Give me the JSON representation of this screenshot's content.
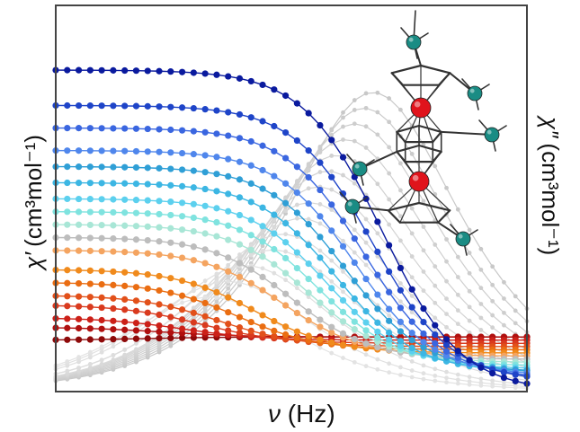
{
  "chart_data": {
    "type": "line",
    "title": "",
    "xlabel_symbol": "ν",
    "xlabel_unit": " (Hz)",
    "ylabel_left_symbol": "χ′",
    "ylabel_left_unit": "(cm³mol⁻¹)",
    "ylabel_right_symbol": "χ″",
    "ylabel_right_unit": "(cm³mol⁻¹)",
    "x_scale": "log",
    "ticks_shown": false,
    "grid": false,
    "legend": "none",
    "x": [
      1,
      2,
      3,
      4,
      5,
      6,
      7,
      8,
      9,
      10,
      11,
      12,
      13,
      14,
      15,
      16,
      17,
      18,
      19,
      20,
      21,
      22,
      23,
      24,
      25,
      26,
      27,
      28,
      29,
      30,
      31,
      32,
      33,
      34,
      35,
      36,
      37,
      38,
      39,
      40,
      41,
      42
    ],
    "real_part_series": [
      {
        "color": "#0a1a9e",
        "chi0": 1.0,
        "chiS": 0.0,
        "logtau": 2.3
      },
      {
        "color": "#1e44c8",
        "chi0": 0.89,
        "chiS": 0.03,
        "logtau": 2.25
      },
      {
        "color": "#3a66e0",
        "chi0": 0.82,
        "chiS": 0.04,
        "logtau": 2.2
      },
      {
        "color": "#4f86ec",
        "chi0": 0.75,
        "chiS": 0.05,
        "logtau": 2.15
      },
      {
        "color": "#2f9fd6",
        "chi0": 0.7,
        "chiS": 0.06,
        "logtau": 2.1
      },
      {
        "color": "#3cb6e3",
        "chi0": 0.65,
        "chiS": 0.06,
        "logtau": 2.05
      },
      {
        "color": "#5cd0ee",
        "chi0": 0.6,
        "chiS": 0.07,
        "logtau": 2.0
      },
      {
        "color": "#7fe3df",
        "chi0": 0.56,
        "chiS": 0.08,
        "logtau": 1.95
      },
      {
        "color": "#a8e6d6",
        "chi0": 0.52,
        "chiS": 0.09,
        "logtau": 1.9
      },
      {
        "color": "#bdbdbd",
        "chi0": 0.48,
        "chiS": 0.1,
        "logtau": 1.8
      },
      {
        "color": "#f4a460",
        "chi0": 0.44,
        "chiS": 0.11,
        "logtau": 1.75
      },
      {
        "color": "#f08a1c",
        "chi0": 0.38,
        "chiS": 0.12,
        "logtau": 1.6
      },
      {
        "color": "#ea6d12",
        "chi0": 0.34,
        "chiS": 0.13,
        "logtau": 1.5
      },
      {
        "color": "#e2501a",
        "chi0": 0.3,
        "chiS": 0.14,
        "logtau": 1.4
      },
      {
        "color": "#d93a1e",
        "chi0": 0.27,
        "chiS": 0.15,
        "logtau": 1.3
      },
      {
        "color": "#cc2018",
        "chi0": 0.23,
        "chiS": 0.16,
        "logtau": 1.2
      },
      {
        "color": "#b0100f",
        "chi0": 0.2,
        "chiS": 0.17,
        "logtau": 1.1
      },
      {
        "color": "#8e0a0a",
        "chi0": 0.16,
        "chiS": 0.17,
        "logtau": 1.0
      }
    ],
    "imaginary_part_series": [
      {
        "color": "#c8c8c8",
        "amp": 0.95,
        "logtau": 2.3
      },
      {
        "color": "#cbcbcb",
        "amp": 0.9,
        "logtau": 2.25
      },
      {
        "color": "#cdcdcd",
        "amp": 0.85,
        "logtau": 2.2
      },
      {
        "color": "#cfcfcf",
        "amp": 0.8,
        "logtau": 2.15
      },
      {
        "color": "#d1d1d1",
        "amp": 0.75,
        "logtau": 2.1
      },
      {
        "color": "#d3d3d3",
        "amp": 0.7,
        "logtau": 2.05
      },
      {
        "color": "#d5d5d5",
        "amp": 0.65,
        "logtau": 2.0
      },
      {
        "color": "#d7d7d7",
        "amp": 0.6,
        "logtau": 1.95
      },
      {
        "color": "#d9d9d9",
        "amp": 0.55,
        "logtau": 1.9
      },
      {
        "color": "#dbdbdb",
        "amp": 0.5,
        "logtau": 1.8
      },
      {
        "color": "#dddddd",
        "amp": 0.45,
        "logtau": 1.75
      },
      {
        "color": "#dfdfdf",
        "amp": 0.4,
        "logtau": 1.6
      },
      {
        "color": "#e1e1e1",
        "amp": 0.35,
        "logtau": 1.5
      },
      {
        "color": "#e3e3e3",
        "amp": 0.3,
        "logtau": 1.4
      }
    ],
    "inset_image": "molecular-structure",
    "atom_colors": {
      "metal": "#e0141c",
      "silicon": "#1a8c84",
      "bond": "#333333"
    }
  }
}
